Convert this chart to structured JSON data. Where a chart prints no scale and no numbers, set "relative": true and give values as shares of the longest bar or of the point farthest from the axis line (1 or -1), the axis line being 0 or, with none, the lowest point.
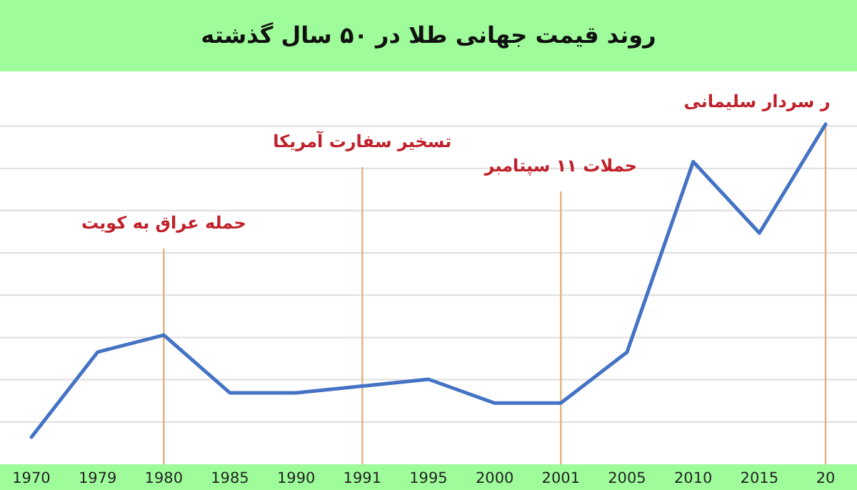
{
  "chart_data": {
    "type": "line",
    "title": "روند قیمت جهانی طلا در ۵۰ سال گذشته",
    "relative": true,
    "grid": true,
    "categories": [
      "1970",
      "1979",
      "1980",
      "1985",
      "1990",
      "1991",
      "1995",
      "2000",
      "2001",
      "2005",
      "2010",
      "2015",
      "20"
    ],
    "series": [
      {
        "color": "#4472c4",
        "values": [
          0.08,
          0.33,
          0.38,
          0.21,
          0.21,
          0.23,
          0.25,
          0.18,
          0.18,
          0.33,
          0.89,
          0.68,
          1
        ]
      }
    ],
    "ref_lines": [
      {
        "axis": "x",
        "value": "1980",
        "label": "حمله عراق به کویت",
        "color": "#e0b080"
      },
      {
        "axis": "x",
        "value": "1991",
        "label": "تسخیر سفارت آمریکا",
        "color": "#e0b080"
      },
      {
        "axis": "x",
        "value": "2001",
        "label": "حملات ۱۱ سپتامبر",
        "color": "#e0b080"
      },
      {
        "axis": "x",
        "value": "20",
        "label": "ر سردار سلیمانی",
        "color": "#e0b080"
      }
    ]
  }
}
